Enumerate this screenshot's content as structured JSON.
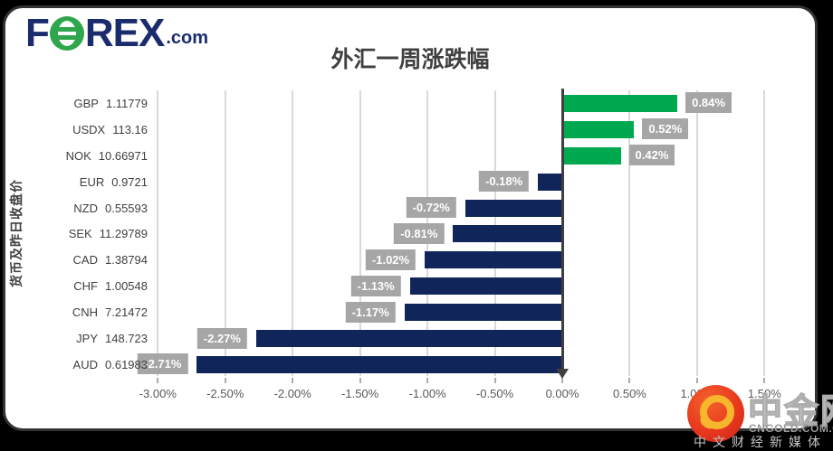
{
  "header": {
    "logo": {
      "f": "F",
      "rex": "REX",
      "dotcom": ".com"
    },
    "title": "外汇一周涨跌幅"
  },
  "chart_data": {
    "type": "bar",
    "orientation": "horizontal",
    "title": "外汇一周涨跌幅",
    "xlabel": "",
    "ylabel": "货币及昨日收盘价",
    "categories": [
      "GBP",
      "USDX",
      "NOK",
      "EUR",
      "NZD",
      "SEK",
      "CAD",
      "CHF",
      "CNH",
      "JPY",
      "AUD"
    ],
    "prev_close_prices": [
      "1.11779",
      "113.16",
      "10.66971",
      "0.9721",
      "0.55593",
      "11.29789",
      "1.38794",
      "1.00548",
      "7.21472",
      "148.723",
      "0.61983"
    ],
    "values": [
      0.84,
      0.52,
      0.42,
      -0.18,
      -0.72,
      -0.81,
      -1.02,
      -1.13,
      -1.17,
      -2.27,
      -2.71
    ],
    "value_labels": [
      "0.84%",
      "0.52%",
      "0.42%",
      "-0.18%",
      "-0.72%",
      "-0.81%",
      "-1.02%",
      "-1.13%",
      "-1.17%",
      "-2.27%",
      "-2.71%"
    ],
    "xticks": [
      {
        "label": "-3.00%",
        "value": -3.0
      },
      {
        "label": "-2.50%",
        "value": -2.5
      },
      {
        "label": "-2.00%",
        "value": -2.0
      },
      {
        "label": "-1.50%",
        "value": -1.5
      },
      {
        "label": "-1.00%",
        "value": -1.0
      },
      {
        "label": "-0.50%",
        "value": -0.5
      },
      {
        "label": "0.00%",
        "value": 0.0
      },
      {
        "label": "0.50%",
        "value": 0.5
      },
      {
        "label": "1.00%",
        "value": 1.0
      },
      {
        "label": "1.50%",
        "value": 1.5
      }
    ],
    "xlim": [
      -3.0,
      1.8
    ],
    "grid": true,
    "legend": "none",
    "colors": {
      "positive_bar": "#00A84F",
      "negative_bar": "#10265A",
      "label_background": "#A6A6A6",
      "label_text": "#FFFFFF",
      "gridline": "#D9D9D9",
      "axis_line": "#3F3F3F"
    }
  },
  "watermark": {
    "site_name": "中金网",
    "domain": "CNGOLD.COM.CN",
    "tagline": "中文财经新媒体"
  }
}
